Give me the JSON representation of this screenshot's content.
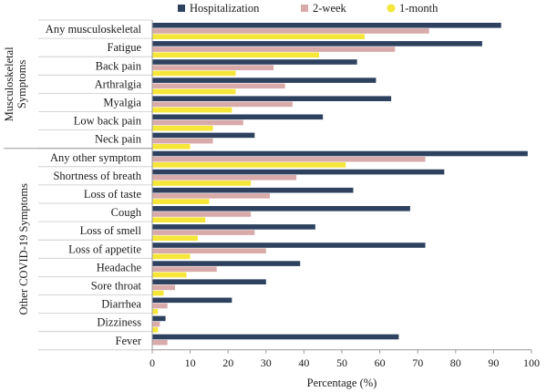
{
  "chart_data": {
    "type": "bar",
    "orientation": "horizontal",
    "categories": [
      "Any musculoskeletal",
      "Fatigue",
      "Back pain",
      "Arthralgia",
      "Myalgia",
      "Low back pain",
      "Neck pain",
      "Any other symptom",
      "Shortness of breath",
      "Loss of taste",
      "Cough",
      "Loss of smell",
      "Loss of appetite",
      "Headache",
      "Sore throat",
      "Diarrhea",
      "Dizziness",
      "Fever"
    ],
    "groups": [
      {
        "label": "Musculoskeletal\nSymptoms",
        "start": 0,
        "end": 6
      },
      {
        "label": "Other COVID-19 Symptoms",
        "start": 7,
        "end": 17
      }
    ],
    "series": [
      {
        "name": "Hospitalization",
        "color": "#2e4260",
        "values": [
          92,
          87,
          54,
          59,
          63,
          45,
          27,
          99,
          77,
          53,
          68,
          43,
          72,
          39,
          30,
          21,
          3.5,
          65
        ]
      },
      {
        "name": "2-week",
        "color": "#d9aaaa",
        "values": [
          73,
          64,
          32,
          35,
          37,
          24,
          16,
          72,
          38,
          31,
          26,
          27,
          30,
          17,
          6,
          4,
          2,
          4
        ]
      },
      {
        "name": "1-month",
        "color": "#f5e637",
        "values": [
          56,
          44,
          22,
          22,
          21,
          16,
          10,
          51,
          26,
          15,
          14,
          12,
          10,
          9,
          3,
          1.5,
          1.5,
          0
        ]
      }
    ],
    "xlabel": "Percentage (%)",
    "ylabel": "",
    "xlim": [
      0,
      100
    ],
    "xticks": [
      0,
      10,
      20,
      30,
      40,
      50,
      60,
      70,
      80,
      90,
      100
    ],
    "legend_position": "top",
    "grid": false
  }
}
